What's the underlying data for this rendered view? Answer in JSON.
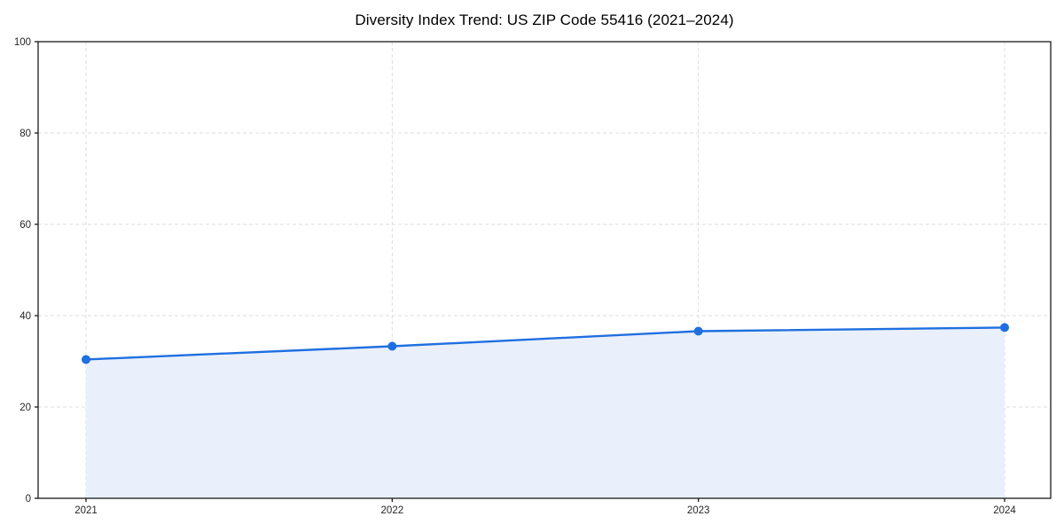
{
  "chart_data": {
    "type": "line",
    "title": "Diversity Index Trend: US ZIP Code 55416 (2021–2024)",
    "x": [
      "2021",
      "2022",
      "2023",
      "2024"
    ],
    "series": [
      {
        "name": "Diversity Index",
        "values": [
          30.4,
          33.3,
          36.6,
          37.4
        ]
      }
    ],
    "xlabel": "",
    "ylabel": "",
    "ylim": [
      0,
      100
    ],
    "yticks": [
      0,
      20,
      40,
      60,
      80,
      100
    ],
    "grid": "dashed horizontal and vertical at ticks",
    "legend_position": "none",
    "area_fill": true,
    "marker": "circle"
  },
  "colors": {
    "line": "#1f6fe0",
    "marker": "#1f6fe0",
    "area_fill": "#e9f0fc",
    "grid": "#dcdcdc",
    "spine": "#1a1a1a",
    "tick_text": "#262626",
    "title_text": "#000000",
    "background": "#ffffff"
  }
}
